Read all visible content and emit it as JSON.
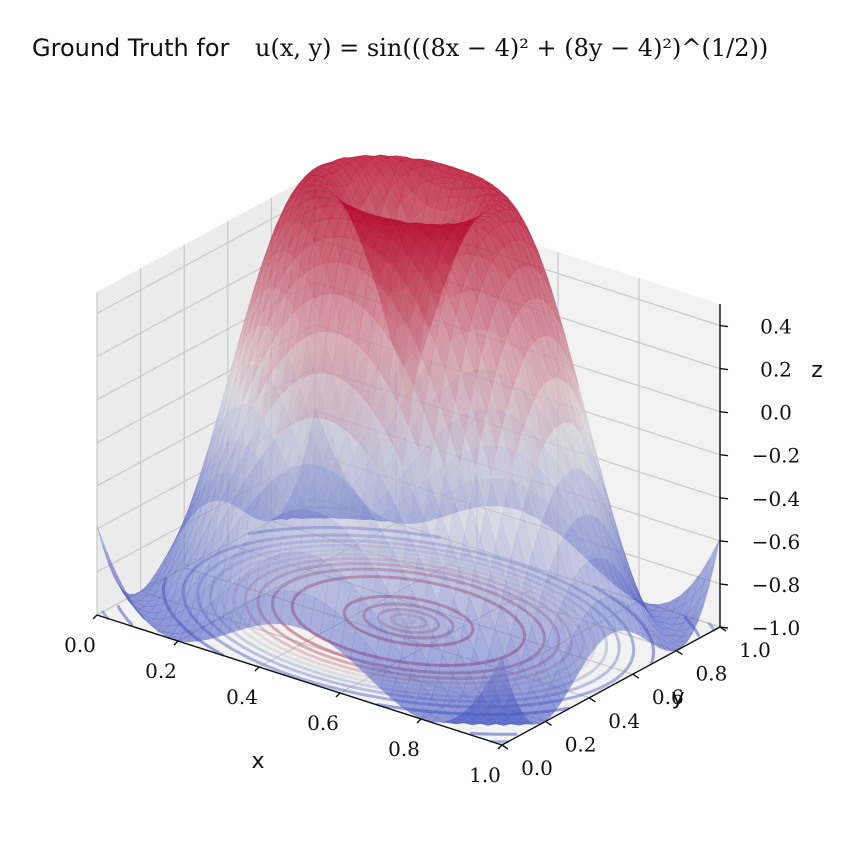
{
  "chart_data": {
    "type": "surface",
    "title_prefix": "Ground Truth for ",
    "title_formula": "u(x, y) = sin(((8x − 4)² + (8y − 4)²)^(1/2))",
    "function": "sin(sqrt((8x-4)^2 + (8y-4)^2))",
    "xlabel": "x",
    "ylabel": "y",
    "zlabel": "z",
    "xlim": [
      0.0,
      1.0
    ],
    "ylim": [
      0.0,
      1.0
    ],
    "zlim": [
      -1.0,
      0.5
    ],
    "x_ticks": [
      "0.0",
      "0.2",
      "0.4",
      "0.6",
      "0.8",
      "1.0"
    ],
    "y_ticks": [
      "0.0",
      "0.2",
      "0.4",
      "0.6",
      "0.8",
      "1.0"
    ],
    "z_ticks": [
      "−1.0",
      "−0.8",
      "−0.6",
      "−0.4",
      "−0.2",
      "0.0",
      "0.2",
      "0.4"
    ],
    "grid": true,
    "colormap": "coolwarm",
    "surface_alpha": 0.55,
    "contour_projection": "floor",
    "colors": {
      "low": "#3b4cc0",
      "mid": "#dddddd",
      "high": "#b40426"
    }
  }
}
